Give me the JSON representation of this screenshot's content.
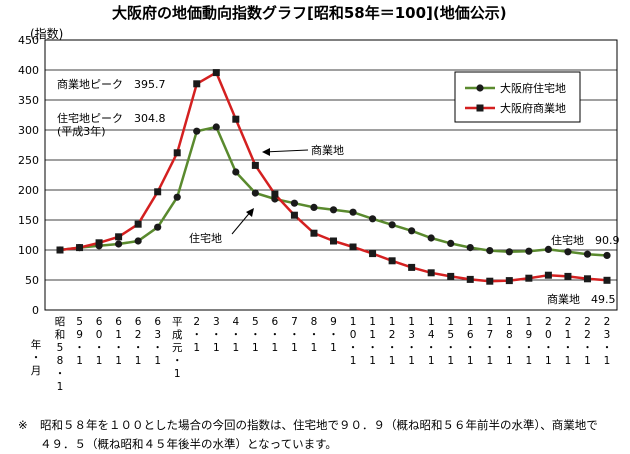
{
  "chart_data": {
    "type": "line",
    "title": "大阪府の地価動向指数グラフ[昭和58年＝100](地価公示)",
    "ylabel": "(指数)",
    "xlabel": "年・月",
    "ylim": [
      0,
      450
    ],
    "yticks": [
      0,
      50,
      100,
      150,
      200,
      250,
      300,
      350,
      400,
      450
    ],
    "grid": true,
    "legend_position": "top-right",
    "categories": [
      "昭和58.1",
      "59.1",
      "60.1",
      "61.1",
      "62.1",
      "63.1",
      "平成元.1",
      "2.1",
      "3.1",
      "4.1",
      "5.1",
      "6.1",
      "7.1",
      "8.1",
      "9.1",
      "10.1",
      "11.1",
      "12.1",
      "13.1",
      "14.1",
      "15.1",
      "16.1",
      "17.1",
      "18.1",
      "19.1",
      "20.1",
      "21.1",
      "22.1",
      "23.1"
    ],
    "tick_labels": [
      [
        "昭",
        "和",
        "5",
        "8",
        "・",
        "1"
      ],
      [
        "5",
        "9",
        "・",
        "1"
      ],
      [
        "6",
        "0",
        "・",
        "1"
      ],
      [
        "6",
        "1",
        "・",
        "1"
      ],
      [
        "6",
        "2",
        "・",
        "1"
      ],
      [
        "6",
        "3",
        "・",
        "1"
      ],
      [
        "平",
        "成",
        "元",
        "・",
        "1"
      ],
      [
        "2",
        "・",
        "1"
      ],
      [
        "3",
        "・",
        "1"
      ],
      [
        "4",
        "・",
        "1"
      ],
      [
        "5",
        "・",
        "1"
      ],
      [
        "6",
        "・",
        "1"
      ],
      [
        "7",
        "・",
        "1"
      ],
      [
        "8",
        "・",
        "1"
      ],
      [
        "9",
        "・",
        "1"
      ],
      [
        "1",
        "0",
        "・",
        "1"
      ],
      [
        "1",
        "1",
        "・",
        "1"
      ],
      [
        "1",
        "2",
        "・",
        "1"
      ],
      [
        "1",
        "3",
        "・",
        "1"
      ],
      [
        "1",
        "4",
        "・",
        "1"
      ],
      [
        "1",
        "5",
        "・",
        "1"
      ],
      [
        "1",
        "6",
        "・",
        "1"
      ],
      [
        "1",
        "7",
        "・",
        "1"
      ],
      [
        "1",
        "8",
        "・",
        "1"
      ],
      [
        "1",
        "9",
        "・",
        "1"
      ],
      [
        "2",
        "0",
        "・",
        "1"
      ],
      [
        "2",
        "1",
        "・",
        "1"
      ],
      [
        "2",
        "2",
        "・",
        "1"
      ],
      [
        "2",
        "3",
        "・",
        "1"
      ]
    ],
    "xaxis_caption": [
      "年",
      "・",
      "月"
    ],
    "series": [
      {
        "name": "大阪府住宅地",
        "color": "#5a8a2e",
        "marker": "circle",
        "values": [
          100,
          104,
          107,
          110,
          115,
          138,
          188,
          298,
          305,
          230,
          195,
          185,
          178,
          171,
          167,
          163,
          152,
          142,
          132,
          120,
          111,
          104,
          99,
          97,
          98,
          101,
          97,
          93,
          90.9
        ]
      },
      {
        "name": "大阪府商業地",
        "color": "#d42020",
        "marker": "square",
        "values": [
          100,
          104,
          112,
          122,
          143,
          197,
          262,
          377,
          395.7,
          318,
          241,
          193,
          158,
          128,
          115,
          105,
          94,
          82,
          71,
          62,
          56,
          51,
          48,
          49,
          53,
          58,
          56,
          52,
          49.5
        ]
      }
    ],
    "annotations": [
      {
        "id": "com-peak",
        "text": "商業地ピーク　395.7"
      },
      {
        "id": "res-peak",
        "text": "住宅地ピーク　304.8"
      },
      {
        "id": "res-peak-sub",
        "text": "(平成3年)"
      },
      {
        "id": "com-label",
        "text": "商業地"
      },
      {
        "id": "res-label",
        "text": "住宅地"
      },
      {
        "id": "res-end",
        "text": "住宅地　90.9"
      },
      {
        "id": "com-end",
        "text": "商業地　49.5"
      }
    ]
  },
  "note": {
    "mark": "※",
    "text": "昭和５８年を１００とした場合の今回の指数は、住宅地で９０．９（概ね昭和５６年前半の水準）、商業地で４９．５（概ね昭和４５年後半の水準）となっています。"
  }
}
